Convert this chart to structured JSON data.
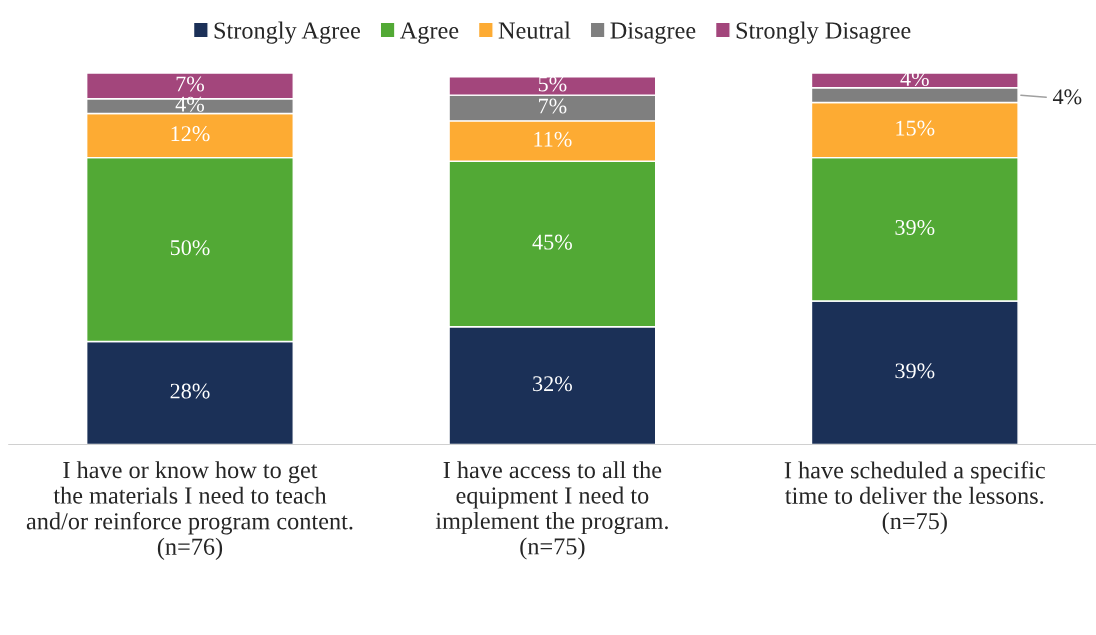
{
  "chart_data": {
    "type": "bar",
    "stacked": true,
    "categories": [
      "I have or know how to get\nthe materials I need to teach\nand/or reinforce program content.\n(n=76)",
      "I have access to all the\nequipment I need to\nimplement the program.\n(n=75)",
      "I have scheduled a specific\ntime to deliver the lessons.\n(n=75)"
    ],
    "series": [
      {
        "name": "Strongly Agree",
        "color": "#1b3057",
        "values": [
          28,
          32,
          39
        ],
        "value_labels": [
          "28%",
          "32%",
          "39%"
        ]
      },
      {
        "name": "Agree",
        "color": "#52a935",
        "values": [
          50,
          45,
          39
        ],
        "value_labels": [
          "50%",
          "45%",
          "39%"
        ]
      },
      {
        "name": "Neutral",
        "color": "#fdab33",
        "values": [
          12,
          11,
          15
        ],
        "value_labels": [
          "12%",
          "11%",
          "15%"
        ]
      },
      {
        "name": "Disagree",
        "color": "#7f7f7f",
        "values": [
          4,
          7,
          4
        ],
        "value_labels": [
          "4%",
          "7%",
          null
        ]
      },
      {
        "name": "Strongly Disagree",
        "color": "#a3467c",
        "values": [
          7,
          5,
          4
        ],
        "value_labels": [
          "7%",
          "5%",
          "4%"
        ]
      }
    ],
    "annotations": [
      "4%"
    ],
    "ylim": [
      0,
      101
    ],
    "tick_labels": "x",
    "legend": "top",
    "grid": false
  }
}
